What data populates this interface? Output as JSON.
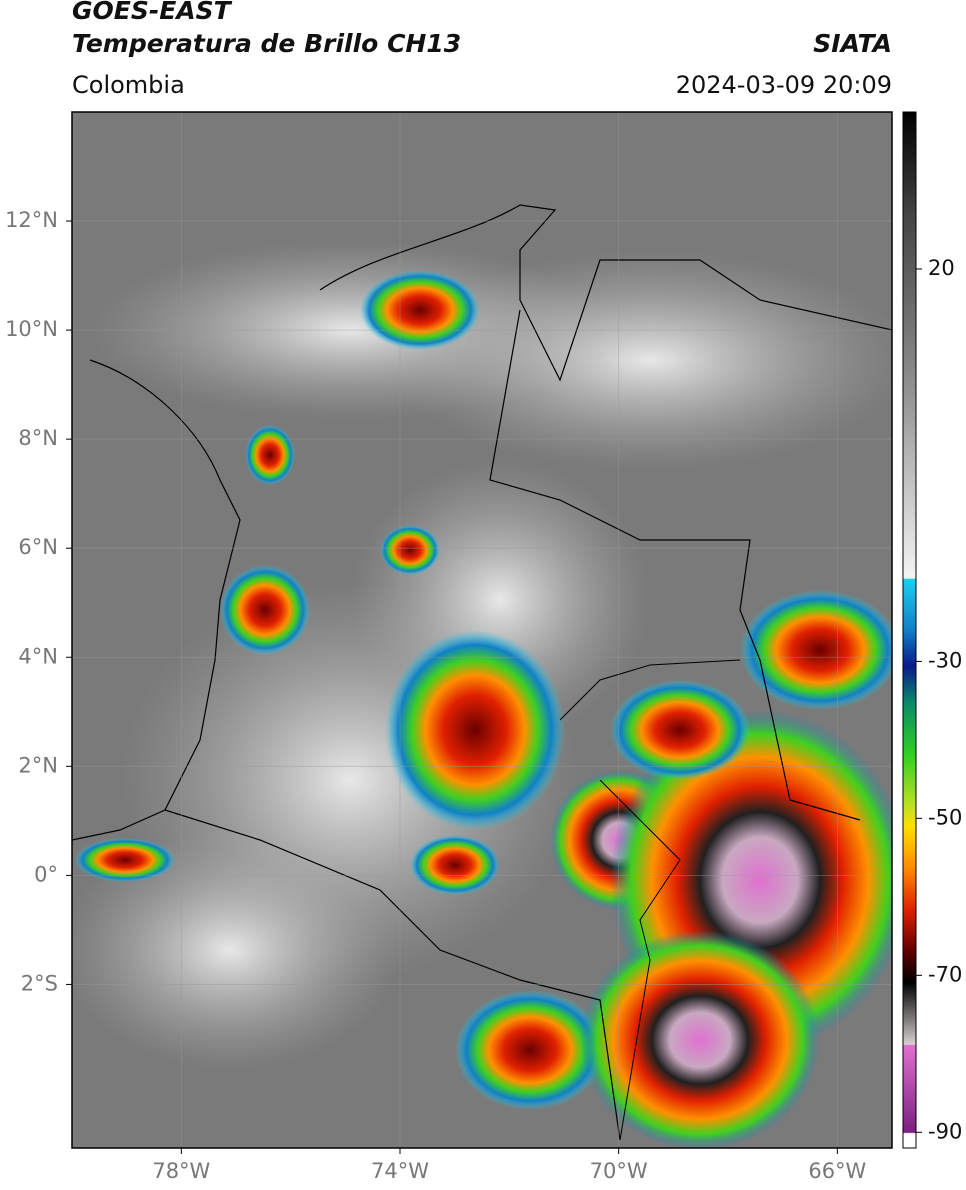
{
  "header": {
    "title_line1": "GOES-EAST",
    "title_line2": "Temperatura de Brillo CH13",
    "region": "Colombia",
    "source": "SIATA",
    "datetime": "2024-03-09 20:09"
  },
  "map": {
    "latlim": [
      -5,
      14
    ],
    "lonlim": [
      -80,
      -65
    ],
    "lat_ticks": [
      {
        "value": 12,
        "label": "12°N"
      },
      {
        "value": 10,
        "label": "10°N"
      },
      {
        "value": 8,
        "label": "8°N"
      },
      {
        "value": 6,
        "label": "6°N"
      },
      {
        "value": 4,
        "label": "4°N"
      },
      {
        "value": 2,
        "label": "2°N"
      },
      {
        "value": 0,
        "label": "0°"
      },
      {
        "value": -2,
        "label": "2°S"
      }
    ],
    "lon_ticks": [
      {
        "value": -78,
        "label": "78°W"
      },
      {
        "value": -74,
        "label": "74°W"
      },
      {
        "value": -70,
        "label": "70°W"
      },
      {
        "value": -66,
        "label": "66°W"
      }
    ],
    "grid": true
  },
  "colorbar": {
    "lim": [
      -92,
      40
    ],
    "ticks": [
      20,
      -30,
      -50,
      -70,
      -90
    ]
  }
}
